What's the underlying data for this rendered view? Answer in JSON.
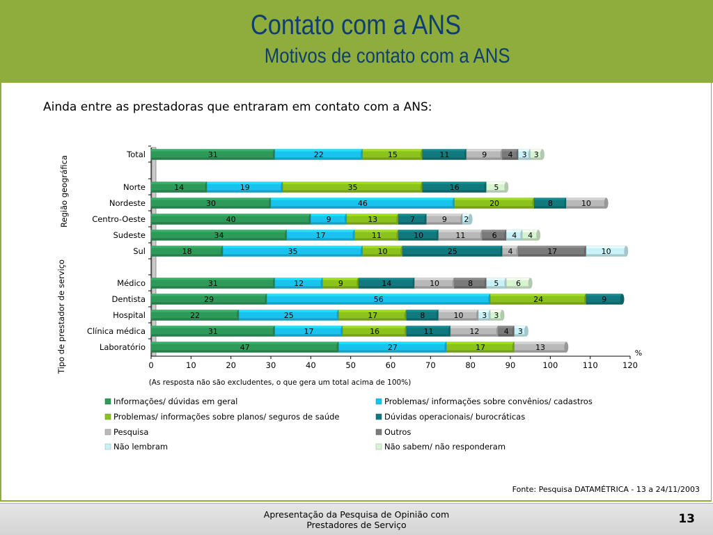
{
  "header": {
    "title": "Contato com a ANS",
    "subtitle": "Motivos de contato com a ANS"
  },
  "intro_text": "Ainda entre as prestadoras que entraram em contato com a ANS:",
  "source_text": "Fonte: Pesquisa DATAMÉTRICA - 13 a 24/11/2003",
  "footer": {
    "line1": "Apresentação da Pesquisa de Opinião com",
    "line2": "Prestadores de Serviço",
    "page_number": "13"
  },
  "colors": {
    "header_bg": "#8fad3d",
    "title_text": "#0f3e70",
    "series": [
      "#2e9a5a",
      "#19c3ee",
      "#8cc21c",
      "#11797e",
      "#b9b9b9",
      "#7a7a7a",
      "#c9f2f8",
      "#d8f5d2"
    ]
  },
  "chart_data": {
    "type": "bar",
    "orientation": "horizontal",
    "stacked": true,
    "note": "(As resposta não são excludentes, o que gera um total acima de 100%)",
    "unit_label": "%",
    "xlim": [
      0,
      120
    ],
    "xticks": [
      0,
      10,
      20,
      30,
      40,
      50,
      60,
      70,
      80,
      90,
      100,
      110,
      120
    ],
    "legend_position": "bottom",
    "groups": [
      {
        "label": "Região geográfica",
        "categories": [
          "Total",
          "Norte",
          "Nordeste",
          "Centro-Oeste",
          "Sudeste",
          "Sul"
        ]
      },
      {
        "label": "Tipo de prestador de serviço",
        "categories": [
          "Médico",
          "Dentista",
          "Hospital",
          "Clínica médica",
          "Laboratório"
        ]
      }
    ],
    "categories": [
      "Total",
      "",
      "Norte",
      "Nordeste",
      "Centro-Oeste",
      "Sudeste",
      "Sul",
      "",
      "Médico",
      "Dentista",
      "Hospital",
      "Clínica médica",
      "Laboratório"
    ],
    "series": [
      {
        "name": "Informações/ dúvidas em geral",
        "values": [
          31,
          null,
          14,
          30,
          40,
          34,
          18,
          null,
          31,
          29,
          22,
          31,
          47
        ]
      },
      {
        "name": "Problemas/ informações sobre convênios/ cadastros",
        "values": [
          22,
          null,
          19,
          46,
          9,
          17,
          35,
          null,
          12,
          56,
          25,
          17,
          27
        ]
      },
      {
        "name": "Problemas/ informações sobre planos/ seguros de saúde",
        "values": [
          15,
          null,
          35,
          20,
          13,
          11,
          10,
          null,
          9,
          24,
          17,
          16,
          17
        ]
      },
      {
        "name": "Dúvidas operacionais/ burocráticas",
        "values": [
          11,
          null,
          16,
          8,
          7,
          10,
          25,
          null,
          14,
          9,
          8,
          11,
          0
        ]
      },
      {
        "name": "Pesquisa",
        "values": [
          9,
          null,
          0,
          10,
          9,
          11,
          4,
          null,
          10,
          0,
          10,
          12,
          13
        ]
      },
      {
        "name": "Outros",
        "values": [
          4,
          null,
          0,
          0,
          0,
          6,
          17,
          null,
          8,
          0,
          0,
          4,
          0
        ]
      },
      {
        "name": "Não lembram",
        "values": [
          3,
          null,
          0,
          0,
          2,
          4,
          10,
          null,
          5,
          0,
          3,
          3,
          0
        ]
      },
      {
        "name": "Não sabem/ não responderam",
        "values": [
          3,
          null,
          5,
          0,
          0,
          4,
          0,
          null,
          6,
          0,
          3,
          0,
          0
        ]
      }
    ]
  }
}
